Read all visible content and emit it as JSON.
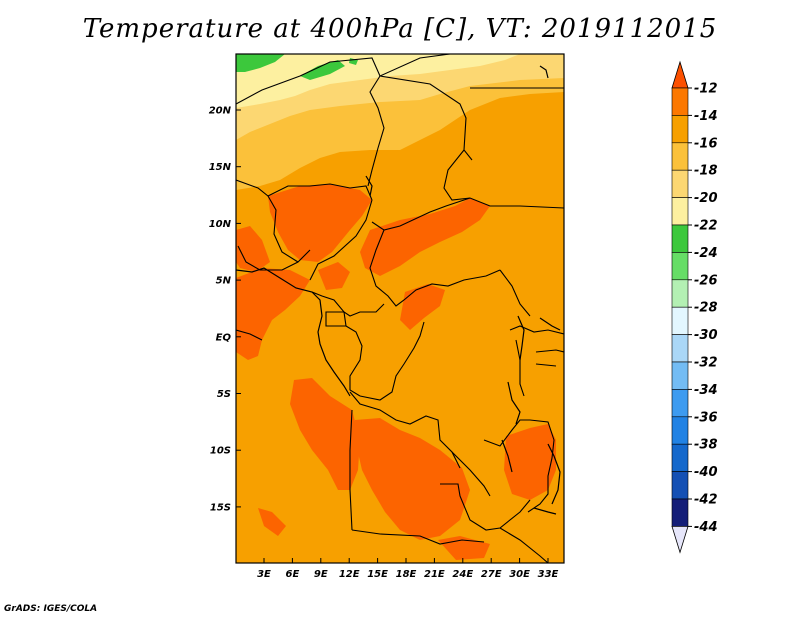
{
  "title": "Temperature at 400hPa [C], VT: 2019112015",
  "credit": "GrADS: IGES/COLA",
  "map": {
    "lat_labels": [
      "20N",
      "15N",
      "10N",
      "5N",
      "EQ",
      "5S",
      "10S",
      "15S"
    ],
    "lon_labels": [
      "3E",
      "6E",
      "9E",
      "12E",
      "15E",
      "18E",
      "21E",
      "24E",
      "27E",
      "30E",
      "33E"
    ],
    "colors": {
      "base": "#f7a000",
      "warm": "#fc6400",
      "cool1": "#fbc13a",
      "cool2": "#fcd772",
      "cool3": "#fdf0a0",
      "green": "#3cc83c",
      "border": "#000000"
    }
  },
  "legend": {
    "labels": [
      "-12",
      "-14",
      "-16",
      "-18",
      "-20",
      "-22",
      "-24",
      "-26",
      "-28",
      "-30",
      "-32",
      "-34",
      "-36",
      "-38",
      "-40",
      "-42",
      "-44"
    ],
    "colors": [
      "#fc5000",
      "#fc7800",
      "#f7a000",
      "#fbc13a",
      "#fcd772",
      "#fdf0a0",
      "#3cc83c",
      "#66dd66",
      "#b3f0b3",
      "#e3f7ff",
      "#aad7f7",
      "#73bcf4",
      "#3d9bf0",
      "#2182e4",
      "#1468cc",
      "#1450b4",
      "#141e78",
      "#e6e6fa"
    ]
  }
}
